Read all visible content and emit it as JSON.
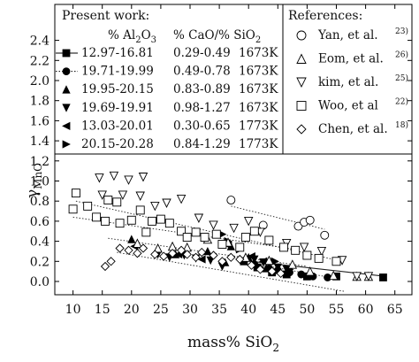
{
  "chart_data": {
    "type": "scatter",
    "xlabel": "mass% SiO",
    "xlabel_sub": "2",
    "ylabel": "γ",
    "ylabel_sub": "MnO",
    "xlim": [
      7,
      67
    ],
    "ylim": [
      -0.12,
      2.5
    ],
    "xticks": [
      10,
      15,
      20,
      25,
      30,
      35,
      40,
      45,
      50,
      55,
      60,
      65
    ],
    "yticks": [
      0.0,
      0.2,
      0.4,
      0.6,
      0.8,
      1.0,
      1.2,
      1.4,
      1.6,
      1.8,
      2.0,
      2.2,
      2.4
    ],
    "grid": false,
    "present_work": {
      "title": "Present work:",
      "col_al2o3_prefix": "% Al",
      "col_al2o3_sub1": "2",
      "col_al2o3_mid": "O",
      "col_al2o3_sub2": "3",
      "col_ratio_prefix": "% CaO/% SiO",
      "col_ratio_sub": "2",
      "rows": [
        {
          "al2o3": "12.97-16.81",
          "ratio": "0.29-0.49",
          "temp": "1673K",
          "marker": "square-filled",
          "line": "solid"
        },
        {
          "al2o3": "19.71-19.99",
          "ratio": "0.49-0.78",
          "temp": "1673K",
          "marker": "circle-filled",
          "line": "dotted"
        },
        {
          "al2o3": "19.95-20.15",
          "ratio": "0.83-0.89",
          "temp": "1673K",
          "marker": "triangle-up-filled",
          "line": "none"
        },
        {
          "al2o3": "19.69-19.91",
          "ratio": "0.98-1.27",
          "temp": "1673K",
          "marker": "triangle-down-filled",
          "line": "none"
        },
        {
          "al2o3": "13.03-20.01",
          "ratio": "0.30-0.65",
          "temp": "1773K",
          "marker": "triangle-left-filled",
          "line": "none"
        },
        {
          "al2o3": "20.15-20.28",
          "ratio": "0.84-1.29",
          "temp": "1773K",
          "marker": "triangle-right-filled",
          "line": "none"
        }
      ]
    },
    "references": {
      "title": "References:",
      "items": [
        {
          "name": "Yan, et al.",
          "ref": "23)",
          "marker": "circle-open"
        },
        {
          "name": "Eom, et al.",
          "ref": "26)",
          "marker": "triangle-up-open"
        },
        {
          "name": "kim, et al.",
          "ref": "25)",
          "marker": "triangle-down-open"
        },
        {
          "name": "Woo, et al",
          "ref": "22)",
          "marker": "square-open"
        },
        {
          "name": "Chen, et al.",
          "ref": "18)",
          "marker": "diamond-open"
        }
      ]
    },
    "series": [
      {
        "marker": "square-filled",
        "points": [
          [
            39.2,
            0.2
          ],
          [
            41.5,
            0.14
          ],
          [
            44.0,
            0.09
          ],
          [
            46.5,
            0.07
          ],
          [
            50.0,
            0.05
          ],
          [
            55.0,
            0.05
          ],
          [
            63.0,
            0.04
          ]
        ]
      },
      {
        "marker": "circle-filled",
        "points": [
          [
            41.0,
            0.17
          ],
          [
            43.5,
            0.13
          ],
          [
            45.0,
            0.11
          ],
          [
            47.0,
            0.09
          ],
          [
            49.0,
            0.07
          ],
          [
            51.0,
            0.05
          ],
          [
            53.5,
            0.04
          ]
        ]
      },
      {
        "marker": "triangle-up-filled",
        "points": [
          [
            20.0,
            0.42
          ],
          [
            27.5,
            0.27
          ],
          [
            33.0,
            0.3
          ],
          [
            36.0,
            0.19
          ],
          [
            37.0,
            0.35
          ],
          [
            40.0,
            0.24
          ],
          [
            43.0,
            0.13
          ]
        ]
      },
      {
        "marker": "triangle-down-filled",
        "points": [
          [
            24.5,
            0.27
          ],
          [
            26.5,
            0.24
          ],
          [
            29.0,
            0.26
          ],
          [
            31.0,
            0.23
          ],
          [
            33.5,
            0.21
          ],
          [
            35.5,
            0.15
          ],
          [
            41.0,
            0.22
          ],
          [
            42.5,
            0.19
          ],
          [
            45.0,
            0.14
          ],
          [
            46.5,
            0.12
          ]
        ]
      },
      {
        "marker": "triangle-left-filled",
        "points": [
          [
            20.5,
            0.35
          ],
          [
            28.0,
            0.27
          ],
          [
            32.0,
            0.22
          ],
          [
            36.5,
            0.36
          ],
          [
            40.5,
            0.25
          ],
          [
            42.5,
            0.2
          ]
        ]
      },
      {
        "marker": "triangle-right-filled",
        "points": [
          [
            35.5,
            0.47
          ],
          [
            36.5,
            0.4
          ],
          [
            38.5,
            0.32
          ],
          [
            42.0,
            0.14
          ],
          [
            44.5,
            0.2
          ],
          [
            47.0,
            0.12
          ]
        ]
      },
      {
        "marker": "circle-open",
        "points": [
          [
            37.0,
            0.81
          ],
          [
            42.5,
            0.56
          ],
          [
            48.5,
            0.55
          ],
          [
            49.5,
            0.59
          ],
          [
            50.5,
            0.61
          ],
          [
            53.0,
            0.46
          ]
        ]
      },
      {
        "marker": "triangle-up-open",
        "points": [
          [
            21.0,
            0.38
          ],
          [
            24.5,
            0.33
          ],
          [
            27.0,
            0.35
          ],
          [
            29.5,
            0.34
          ],
          [
            33.0,
            0.42
          ],
          [
            36.5,
            0.39
          ],
          [
            39.5,
            0.24
          ],
          [
            43.5,
            0.21
          ],
          [
            47.5,
            0.17
          ],
          [
            50.5,
            0.1
          ],
          [
            54.5,
            0.06
          ],
          [
            58.5,
            0.05
          ],
          [
            60.5,
            0.05
          ]
        ]
      },
      {
        "marker": "triangle-down-open",
        "points": [
          [
            14.5,
            1.03
          ],
          [
            17.0,
            1.05
          ],
          [
            19.5,
            1.01
          ],
          [
            22.0,
            1.04
          ],
          [
            15.0,
            0.86
          ],
          [
            18.5,
            0.86
          ],
          [
            21.5,
            0.85
          ],
          [
            24.0,
            0.75
          ],
          [
            26.0,
            0.78
          ],
          [
            28.5,
            0.82
          ],
          [
            31.5,
            0.63
          ],
          [
            34.0,
            0.56
          ],
          [
            37.5,
            0.53
          ],
          [
            40.0,
            0.6
          ],
          [
            42.0,
            0.49
          ],
          [
            46.5,
            0.38
          ],
          [
            49.5,
            0.34
          ],
          [
            52.5,
            0.3
          ],
          [
            56.0,
            0.21
          ],
          [
            58.5,
            0.05
          ],
          [
            60.5,
            0.05
          ]
        ]
      },
      {
        "marker": "square-open",
        "points": [
          [
            10.0,
            0.72
          ],
          [
            10.5,
            0.88
          ],
          [
            12.5,
            0.75
          ],
          [
            14.0,
            0.64
          ],
          [
            16.0,
            0.81
          ],
          [
            17.5,
            0.79
          ],
          [
            15.5,
            0.6
          ],
          [
            18.0,
            0.58
          ],
          [
            20.0,
            0.61
          ],
          [
            21.5,
            0.71
          ],
          [
            22.5,
            0.49
          ],
          [
            23.5,
            0.6
          ],
          [
            25.0,
            0.62
          ],
          [
            26.5,
            0.58
          ],
          [
            28.5,
            0.5
          ],
          [
            29.5,
            0.44
          ],
          [
            31.0,
            0.49
          ],
          [
            32.5,
            0.44
          ],
          [
            34.5,
            0.47
          ],
          [
            35.5,
            0.37
          ],
          [
            38.5,
            0.34
          ],
          [
            39.5,
            0.44
          ],
          [
            41.0,
            0.5
          ],
          [
            43.5,
            0.41
          ],
          [
            46.0,
            0.34
          ],
          [
            48.0,
            0.31
          ],
          [
            50.0,
            0.26
          ],
          [
            52.0,
            0.23
          ],
          [
            55.0,
            0.2
          ]
        ]
      },
      {
        "marker": "diamond-open",
        "points": [
          [
            15.5,
            0.15
          ],
          [
            16.5,
            0.2
          ],
          [
            18.0,
            0.33
          ],
          [
            19.5,
            0.31
          ],
          [
            21.0,
            0.28
          ],
          [
            22.0,
            0.33
          ],
          [
            24.0,
            0.27
          ],
          [
            25.5,
            0.25
          ],
          [
            27.0,
            0.28
          ],
          [
            28.5,
            0.31
          ],
          [
            29.5,
            0.27
          ],
          [
            31.0,
            0.24
          ],
          [
            32.0,
            0.29
          ],
          [
            34.0,
            0.26
          ],
          [
            35.5,
            0.2
          ],
          [
            37.0,
            0.24
          ],
          [
            38.5,
            0.22
          ],
          [
            40.5,
            0.16
          ],
          [
            42.0,
            0.12
          ],
          [
            44.0,
            0.1
          ],
          [
            45.5,
            0.08
          ]
        ]
      }
    ],
    "trend_lines": [
      {
        "style": "solid",
        "from": [
          39.0,
          0.21
        ],
        "to": [
          63.5,
          0.05
        ]
      },
      {
        "style": "dotted",
        "from": [
          40.5,
          0.18
        ],
        "to": [
          54.0,
          0.04
        ]
      },
      {
        "style": "dotted",
        "from": [
          10.0,
          0.64
        ],
        "to": [
          48.0,
          0.32
        ]
      },
      {
        "style": "dotted",
        "from": [
          10.5,
          0.8
        ],
        "to": [
          56.0,
          0.2
        ]
      },
      {
        "style": "dotted",
        "from": [
          16.0,
          0.43
        ],
        "to": [
          50.0,
          0.15
        ]
      },
      {
        "style": "dotted",
        "from": [
          37.0,
          0.75
        ],
        "to": [
          53.0,
          0.52
        ]
      },
      {
        "style": "dotted",
        "from": [
          17.5,
          0.29
        ],
        "to": [
          56.5,
          -0.1
        ]
      }
    ]
  }
}
